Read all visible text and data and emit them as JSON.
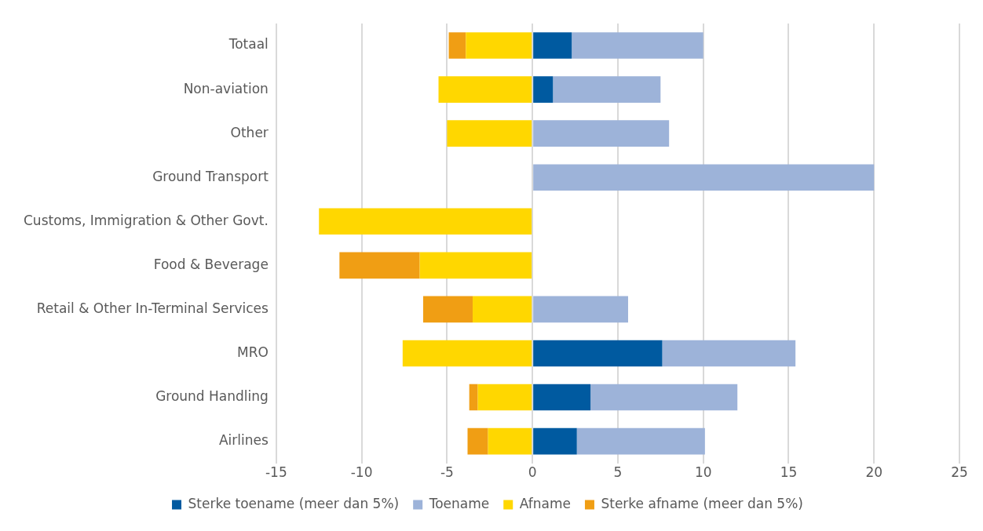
{
  "chart_data": {
    "type": "bar",
    "orientation": "horizontal",
    "stacked": true,
    "categories": [
      "Totaal",
      "Non-aviation",
      "Other",
      "Ground Transport",
      "Customs, Immigration & Other Govt.",
      "Food & Beverage",
      "Retail & Other In-Terminal Services",
      "MRO",
      "Ground Handling",
      "Airlines"
    ],
    "series": [
      {
        "name": "Sterke toename (meer dan 5%)",
        "color": "#005aa0",
        "values": [
          2.3,
          1.2,
          null,
          null,
          null,
          null,
          null,
          7.6,
          3.4,
          2.6
        ]
      },
      {
        "name": "Toename",
        "color": "#9db3d9",
        "values": [
          7.7,
          6.3,
          8,
          20,
          null,
          null,
          5.6,
          7.8,
          8.6,
          7.5
        ]
      },
      {
        "name": "Afname",
        "color": "#ffd700",
        "values": [
          -3.9,
          -5.5,
          -5,
          null,
          -12.5,
          -6.6,
          -3.5,
          -7.6,
          -3.2,
          -2.6
        ]
      },
      {
        "name": "Sterke afname (meer dan 5%)",
        "color": "#f09e14",
        "values": [
          -1,
          null,
          null,
          null,
          null,
          -4.7,
          -2.9,
          null,
          -0.5,
          -1.2
        ]
      }
    ],
    "xlim": [
      -15,
      25
    ],
    "xticks": [
      -15,
      -10,
      -5,
      0,
      5,
      10,
      15,
      20,
      25
    ],
    "grid": "x",
    "legend": "bottom"
  }
}
